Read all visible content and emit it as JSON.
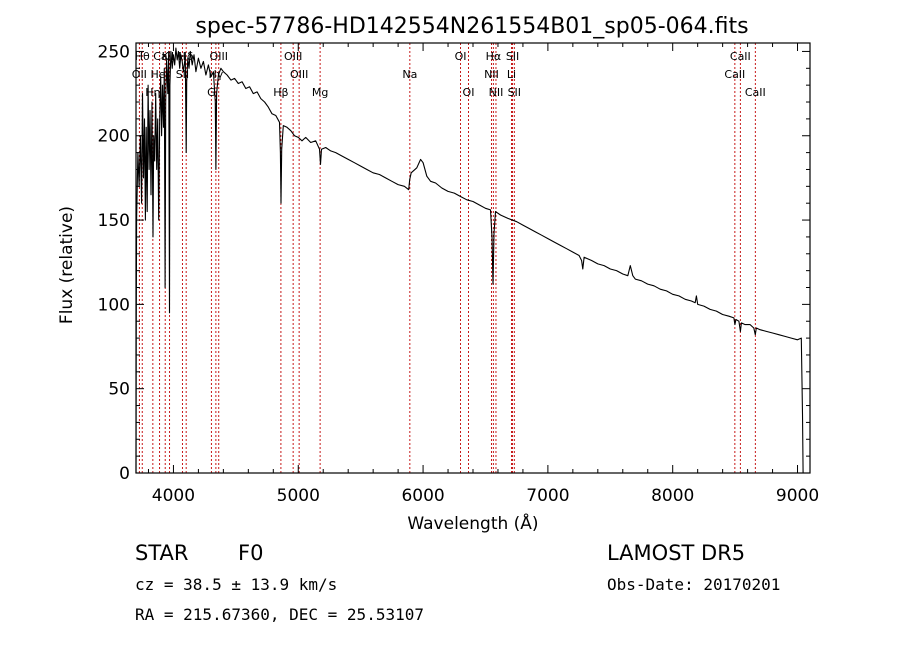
{
  "chart_data": {
    "type": "line",
    "title": "spec-57786-HD142554N261554B01_sp05-064.fits",
    "xlabel": "Wavelength (Å)",
    "ylabel": "Flux (relative)",
    "xlim": [
      3700,
      9100
    ],
    "ylim": [
      0,
      255
    ],
    "xticks": [
      4000,
      5000,
      6000,
      7000,
      8000,
      9000
    ],
    "yticks": [
      0,
      50,
      100,
      150,
      200,
      250
    ],
    "grid": false,
    "series": [
      {
        "points": [
          [
            3700,
            0
          ],
          [
            3702,
            80
          ],
          [
            3705,
            150
          ],
          [
            3715,
            190
          ],
          [
            3725,
            170
          ],
          [
            3735,
            200
          ],
          [
            3745,
            160
          ],
          [
            3752,
            225
          ],
          [
            3760,
            175
          ],
          [
            3768,
            210
          ],
          [
            3775,
            150
          ],
          [
            3782,
            205
          ],
          [
            3790,
            155
          ],
          [
            3797,
            230
          ],
          [
            3805,
            180
          ],
          [
            3812,
            215
          ],
          [
            3820,
            165
          ],
          [
            3828,
            220
          ],
          [
            3836,
            140
          ],
          [
            3842,
            200
          ],
          [
            3850,
            185
          ],
          [
            3858,
            225
          ],
          [
            3866,
            180
          ],
          [
            3874,
            210
          ],
          [
            3882,
            150
          ],
          [
            3890,
            210
          ],
          [
            3898,
            235
          ],
          [
            3905,
            200
          ],
          [
            3912,
            230
          ],
          [
            3920,
            205
          ],
          [
            3927,
            240
          ],
          [
            3933,
            110
          ],
          [
            3938,
            220
          ],
          [
            3945,
            245
          ],
          [
            3955,
            225
          ],
          [
            3962,
            250
          ],
          [
            3968,
            95
          ],
          [
            3972,
            230
          ],
          [
            3980,
            250
          ],
          [
            3990,
            240
          ],
          [
            4000,
            248
          ],
          [
            4010,
            242
          ],
          [
            4020,
            252
          ],
          [
            4030,
            245
          ],
          [
            4040,
            250
          ],
          [
            4050,
            240
          ],
          [
            4060,
            248
          ],
          [
            4070,
            244
          ],
          [
            4080,
            238
          ],
          [
            4095,
            247
          ],
          [
            4102,
            190
          ],
          [
            4106,
            232
          ],
          [
            4115,
            246
          ],
          [
            4125,
            240
          ],
          [
            4135,
            250
          ],
          [
            4150,
            242
          ],
          [
            4165,
            248
          ],
          [
            4180,
            238
          ],
          [
            4200,
            246
          ],
          [
            4220,
            240
          ],
          [
            4240,
            244
          ],
          [
            4260,
            236
          ],
          [
            4280,
            242
          ],
          [
            4300,
            235
          ],
          [
            4320,
            238
          ],
          [
            4335,
            220
          ],
          [
            4340,
            180
          ],
          [
            4346,
            225
          ],
          [
            4360,
            236
          ],
          [
            4380,
            240
          ],
          [
            4400,
            238
          ],
          [
            4430,
            236
          ],
          [
            4460,
            233
          ],
          [
            4490,
            234
          ],
          [
            4520,
            231
          ],
          [
            4550,
            232
          ],
          [
            4580,
            228
          ],
          [
            4610,
            229
          ],
          [
            4640,
            225
          ],
          [
            4670,
            226
          ],
          [
            4700,
            222
          ],
          [
            4730,
            220
          ],
          [
            4760,
            217
          ],
          [
            4790,
            213
          ],
          [
            4820,
            212
          ],
          [
            4850,
            208
          ],
          [
            4857,
            190
          ],
          [
            4862,
            160
          ],
          [
            4867,
            192
          ],
          [
            4880,
            206
          ],
          [
            4910,
            205
          ],
          [
            4940,
            203
          ],
          [
            4970,
            200
          ],
          [
            5000,
            199
          ],
          [
            5030,
            197
          ],
          [
            5060,
            199
          ],
          [
            5100,
            196
          ],
          [
            5140,
            197
          ],
          [
            5170,
            192
          ],
          [
            5178,
            183
          ],
          [
            5186,
            192
          ],
          [
            5220,
            193
          ],
          [
            5260,
            191
          ],
          [
            5300,
            190
          ],
          [
            5350,
            188
          ],
          [
            5400,
            186
          ],
          [
            5450,
            184
          ],
          [
            5500,
            182
          ],
          [
            5550,
            180
          ],
          [
            5600,
            178
          ],
          [
            5650,
            177
          ],
          [
            5700,
            175
          ],
          [
            5750,
            173
          ],
          [
            5800,
            171
          ],
          [
            5850,
            170
          ],
          [
            5885,
            168
          ],
          [
            5893,
            174
          ],
          [
            5905,
            178
          ],
          [
            5950,
            181
          ],
          [
            5980,
            186
          ],
          [
            6000,
            184
          ],
          [
            6030,
            176
          ],
          [
            6060,
            173
          ],
          [
            6100,
            172
          ],
          [
            6150,
            169
          ],
          [
            6200,
            167
          ],
          [
            6250,
            166
          ],
          [
            6300,
            164
          ],
          [
            6350,
            162
          ],
          [
            6400,
            161
          ],
          [
            6450,
            159
          ],
          [
            6500,
            157
          ],
          [
            6540,
            156
          ],
          [
            6552,
            140
          ],
          [
            6560,
            112
          ],
          [
            6568,
            142
          ],
          [
            6580,
            155
          ],
          [
            6620,
            153
          ],
          [
            6680,
            151
          ],
          [
            6750,
            149
          ],
          [
            6800,
            147
          ],
          [
            6850,
            145
          ],
          [
            6900,
            143
          ],
          [
            6950,
            141
          ],
          [
            7000,
            139
          ],
          [
            7050,
            137
          ],
          [
            7100,
            135
          ],
          [
            7150,
            133
          ],
          [
            7200,
            131
          ],
          [
            7250,
            129
          ],
          [
            7270,
            126
          ],
          [
            7280,
            121
          ],
          [
            7290,
            128
          ],
          [
            7350,
            126
          ],
          [
            7400,
            124
          ],
          [
            7450,
            123
          ],
          [
            7500,
            121
          ],
          [
            7550,
            120
          ],
          [
            7600,
            118
          ],
          [
            7640,
            117
          ],
          [
            7660,
            123
          ],
          [
            7680,
            117
          ],
          [
            7700,
            115
          ],
          [
            7750,
            114
          ],
          [
            7800,
            112
          ],
          [
            7850,
            111
          ],
          [
            7900,
            109
          ],
          [
            7950,
            108
          ],
          [
            8000,
            106
          ],
          [
            8050,
            105
          ],
          [
            8100,
            103
          ],
          [
            8150,
            102
          ],
          [
            8180,
            101
          ],
          [
            8190,
            105
          ],
          [
            8200,
            100
          ],
          [
            8250,
            99
          ],
          [
            8300,
            97
          ],
          [
            8350,
            96
          ],
          [
            8400,
            94
          ],
          [
            8450,
            93
          ],
          [
            8490,
            92
          ],
          [
            8498,
            88
          ],
          [
            8506,
            91
          ],
          [
            8530,
            90
          ],
          [
            8542,
            84
          ],
          [
            8550,
            89
          ],
          [
            8580,
            88
          ],
          [
            8620,
            88
          ],
          [
            8650,
            86
          ],
          [
            8662,
            82
          ],
          [
            8670,
            86
          ],
          [
            8700,
            85
          ],
          [
            8750,
            84
          ],
          [
            8800,
            83
          ],
          [
            8850,
            82
          ],
          [
            8900,
            81
          ],
          [
            8950,
            80
          ],
          [
            9000,
            79
          ],
          [
            9030,
            80
          ],
          [
            9040,
            35
          ],
          [
            9045,
            0
          ]
        ]
      }
    ],
    "lines": [
      {
        "label": "OII",
        "wavelength": 3727,
        "row": 1
      },
      {
        "label": "Hθ",
        "wavelength": 3750,
        "row": 0
      },
      {
        "label": "Hη",
        "wavelength": 3835,
        "row": 2
      },
      {
        "label": "HeI",
        "wavelength": 3889,
        "row": 1
      },
      {
        "label": "K",
        "wavelength": 3934,
        "row": 0
      },
      {
        "label": "SII",
        "wavelength": 4072,
        "row": 1
      },
      {
        "label": "CaII H",
        "wavelength": 3969,
        "row": 0
      },
      {
        "label": "Hδ",
        "wavelength": 4102,
        "row": 0
      },
      {
        "label": "OIII",
        "wavelength": 4363,
        "row": 0
      },
      {
        "label": "G",
        "wavelength": 4304,
        "row": 2
      },
      {
        "label": "Hγ",
        "wavelength": 4340,
        "row": 1
      },
      {
        "label": "Hβ",
        "wavelength": 4861,
        "row": 2
      },
      {
        "label": "OIII",
        "wavelength": 4959,
        "row": 0
      },
      {
        "label": "OIII",
        "wavelength": 5007,
        "row": 1
      },
      {
        "label": "Mg",
        "wavelength": 5175,
        "row": 2
      },
      {
        "label": "Na",
        "wavelength": 5894,
        "row": 1
      },
      {
        "label": "OI",
        "wavelength": 6300,
        "row": 0
      },
      {
        "label": "OI",
        "wavelength": 6364,
        "row": 2
      },
      {
        "label": "Hα",
        "wavelength": 6563,
        "row": 0
      },
      {
        "label": "NII",
        "wavelength": 6548,
        "row": 1
      },
      {
        "label": "NII",
        "wavelength": 6584,
        "row": 2
      },
      {
        "label": "SII",
        "wavelength": 6717,
        "row": 0
      },
      {
        "label": "Li",
        "wavelength": 6708,
        "row": 1
      },
      {
        "label": "SII",
        "wavelength": 6731,
        "row": 2
      },
      {
        "label": "CaII",
        "wavelength": 8498,
        "row": 1
      },
      {
        "label": "CaII",
        "wavelength": 8542,
        "row": 0
      },
      {
        "label": "CaII",
        "wavelength": 8662,
        "row": 2
      }
    ]
  },
  "info": {
    "object_class": "STAR",
    "subclass": "F0",
    "survey": "LAMOST DR5",
    "redshift_text": "cz = 38.5 ± 13.9 km/s",
    "obs_date": "Obs-Date: 20170201",
    "coords": "RA = 215.67360, DEC =  25.53107"
  }
}
